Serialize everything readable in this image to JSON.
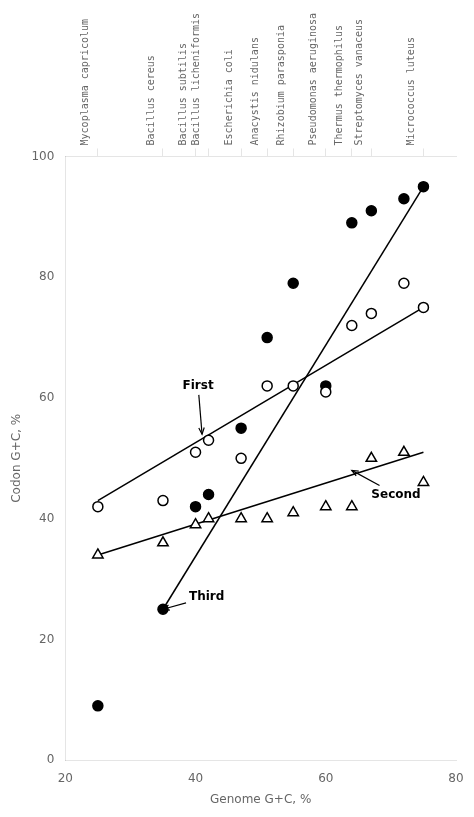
{
  "chart_data": {
    "type": "scatter",
    "xlabel": "Genome G+C, %",
    "ylabel": "Codon G+C, %",
    "xlim": [
      20,
      80
    ],
    "ylim": [
      0,
      100
    ],
    "xticks": [
      20,
      40,
      60,
      80
    ],
    "yticks": [
      0,
      20,
      40,
      60,
      80,
      100
    ],
    "x2lim": [
      20,
      80
    ],
    "x2ticks": [
      {
        "value": 25,
        "label": "Mycoplasma capricolum"
      },
      {
        "value": 35,
        "label": "Bacillus cereus"
      },
      {
        "value": 40,
        "label": "Bacillus subtilis"
      },
      {
        "value": 42,
        "label": "Bacillus licheniformis"
      },
      {
        "value": 47,
        "label": "Escherichia coli"
      },
      {
        "value": 51,
        "label": "Anacystis nidulans"
      },
      {
        "value": 55,
        "label": "Rhizobium parasponia"
      },
      {
        "value": 60,
        "label": "Pseudomonas aeruginosa"
      },
      {
        "value": 64,
        "label": "Thermus thermophilus"
      },
      {
        "value": 67,
        "label": "Streptomyces vanaceus"
      },
      {
        "value": 75,
        "label": "Micrococcus luteus"
      }
    ],
    "grid": false,
    "series": [
      {
        "type": "scatter",
        "marker": "open_circle",
        "color": "#000000",
        "x": [
          25,
          35,
          40,
          42,
          47,
          51,
          55,
          60,
          64,
          67,
          72,
          75
        ],
        "values": [
          42,
          43,
          51,
          53,
          50,
          62,
          62,
          61,
          72,
          74,
          79,
          75
        ]
      },
      {
        "type": "scatter",
        "marker": "open_triangle",
        "color": "#000000",
        "x": [
          25,
          35,
          40,
          42,
          47,
          51,
          55,
          60,
          64,
          67,
          72,
          75
        ],
        "values": [
          34,
          36,
          39,
          40,
          40,
          40,
          41,
          42,
          42,
          50,
          51,
          46
        ]
      },
      {
        "type": "scatter",
        "marker": "filled_circle",
        "color": "#000000",
        "x": [
          25,
          35,
          40,
          42,
          47,
          51,
          55,
          60,
          64,
          67,
          72,
          75
        ],
        "values": [
          9,
          25,
          42,
          44,
          55,
          70,
          79,
          62,
          89,
          91,
          93,
          95
        ]
      },
      {
        "type": "line",
        "marker": "none",
        "line_style": "solid",
        "color": "#000000",
        "x": [
          25,
          75
        ],
        "values": [
          43,
          75
        ]
      },
      {
        "type": "line",
        "marker": "none",
        "line_style": "solid",
        "color": "#000000",
        "x": [
          25,
          75
        ],
        "values": [
          34,
          51
        ]
      },
      {
        "type": "line",
        "marker": "none",
        "line_style": "solid",
        "color": "#000000",
        "x": [
          35,
          75
        ],
        "values": [
          25,
          95
        ]
      }
    ],
    "annotations": [
      {
        "text": "First",
        "x": 38,
        "y": 62,
        "arrow_x": 41,
        "arrow_y": 54
      },
      {
        "text": "Second",
        "x": 67,
        "y": 44,
        "arrow_x": 64,
        "arrow_y": 48
      },
      {
        "text": "Third",
        "x": 39,
        "y": 27,
        "arrow_x": 35,
        "arrow_y": 25
      }
    ]
  }
}
